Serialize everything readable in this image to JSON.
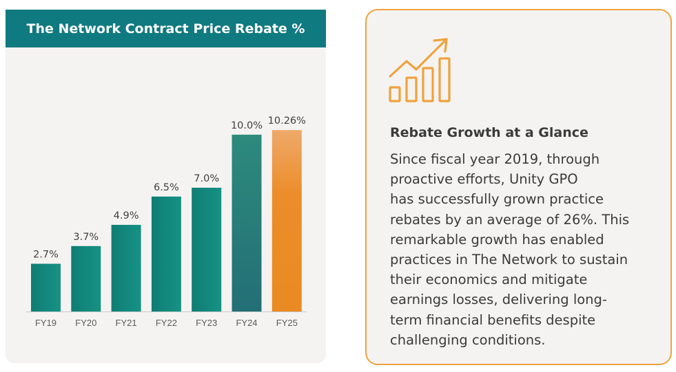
{
  "chart_data": {
    "type": "bar",
    "title": "The Network Contract Price Rebate %",
    "categories": [
      "FY19",
      "FY20",
      "FY21",
      "FY22",
      "FY23",
      "FY24",
      "FY25"
    ],
    "values": [
      2.7,
      3.7,
      4.9,
      6.5,
      7.0,
      10.0,
      10.26
    ],
    "value_labels": [
      "2.7%",
      "3.7%",
      "4.9%",
      "6.5%",
      "7.0%",
      "10.0%",
      "10.26%"
    ],
    "bar_colors": [
      "#13857a",
      "#13857a",
      "#13857a",
      "#13857a",
      "#13857a",
      "#2a7e7a",
      "#ed8f2a"
    ],
    "ylim": [
      0,
      10.5
    ],
    "grid": false,
    "legend": "none"
  },
  "card": {
    "icon": "growth-chart-icon",
    "accent_color": "#f0a23c",
    "heading": "Rebate Growth at a Glance",
    "body": "Since fiscal year 2019, through\nproactive efforts, Unity GPO\nhas successfully grown practice\nrebates by an average of 26%. This\nremarkable growth has enabled\npractices in The Network to sustain\ntheir economics and mitigate\nearnings losses, delivering long-\nterm financial benefits despite\nchallenging conditions."
  }
}
